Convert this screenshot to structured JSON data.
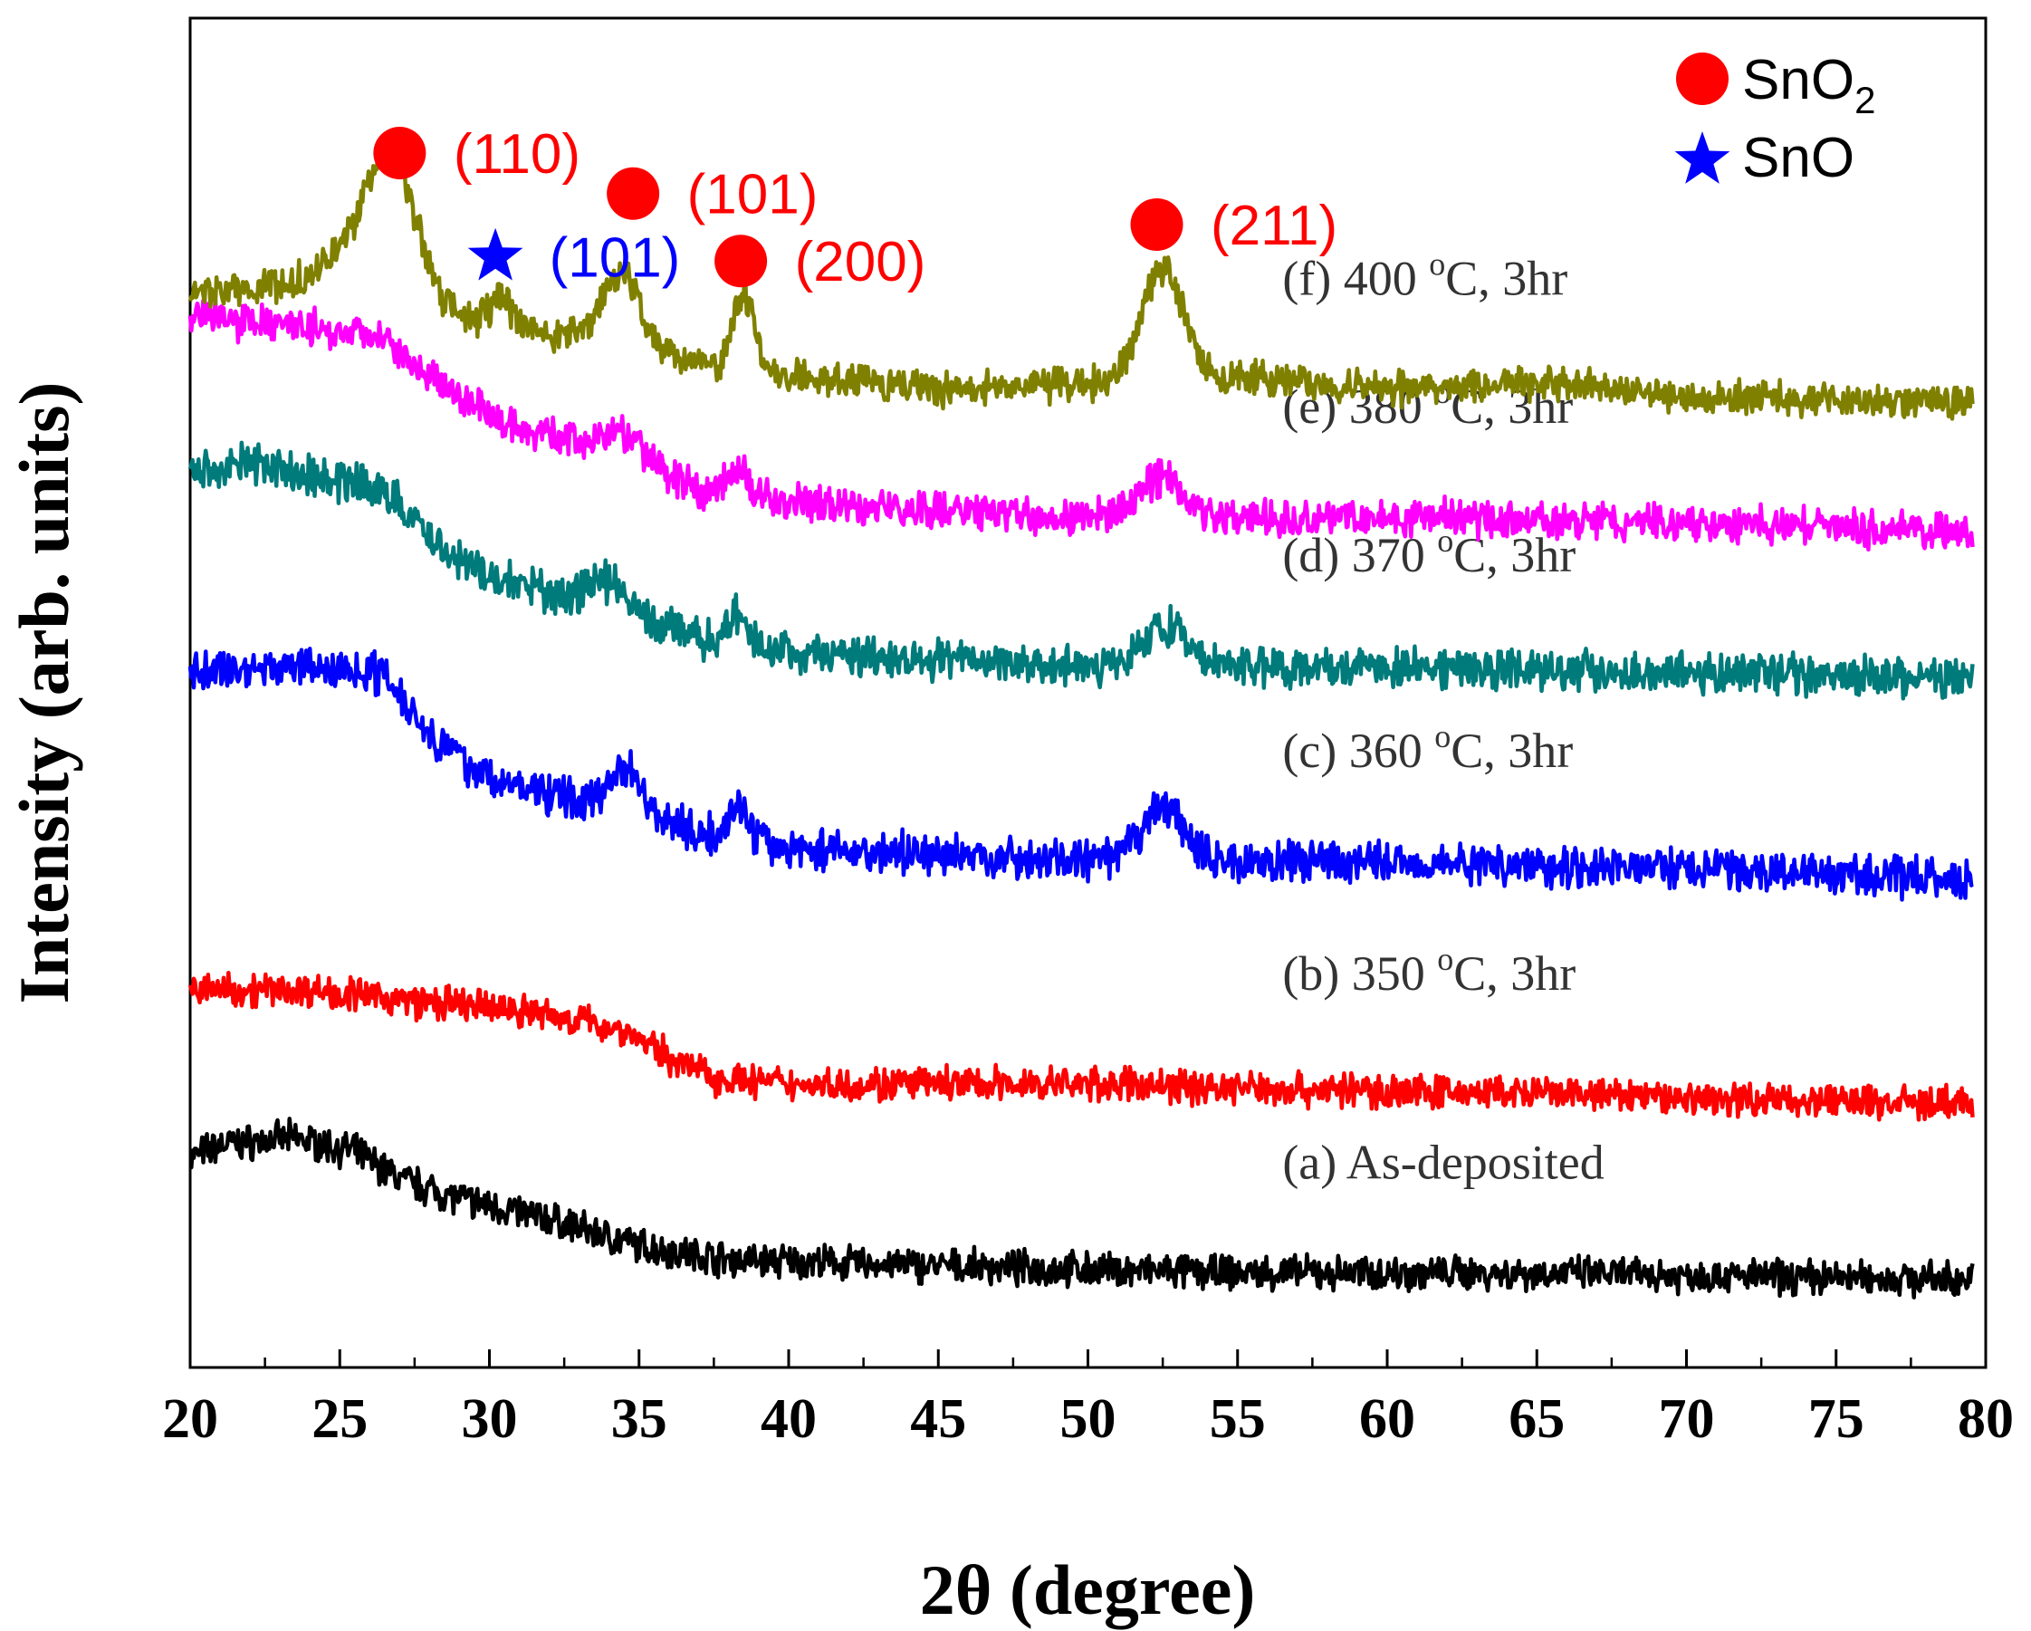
{
  "chart_data": {
    "type": "line",
    "title": "",
    "xlabel": "2θ (degree)",
    "ylabel": "Intensity (arb. units)",
    "xlim": [
      20,
      80
    ],
    "ylim": [
      0,
      1
    ],
    "x_ticks": [
      "20",
      "25",
      "30",
      "35",
      "40",
      "45",
      "50",
      "55",
      "60",
      "65",
      "70",
      "75",
      "80"
    ],
    "grid": false,
    "legend": {
      "position": "top-right",
      "entries": [
        {
          "marker": "circle",
          "color": "#ff0000",
          "base": "SnO",
          "sub": "2"
        },
        {
          "marker": "star",
          "color": "#0000ff",
          "label": "SnO"
        }
      ]
    },
    "series": [
      {
        "name": "(a) As-deposited",
        "label": "(a) As-deposited",
        "label_x": 56.5,
        "color": "#000000",
        "baseline": 0.055,
        "noise": 0.01,
        "shape": [
          [
            20,
            0.1
          ],
          [
            21,
            0.11
          ],
          [
            23.5,
            0.115
          ],
          [
            25.5,
            0.105
          ],
          [
            27,
            0.085
          ],
          [
            29,
            0.07
          ],
          [
            32,
            0.055
          ],
          [
            35,
            0.035
          ],
          [
            38,
            0.025
          ],
          [
            45,
            0.02
          ],
          [
            55,
            0.015
          ],
          [
            65,
            0.015
          ],
          [
            80,
            0.01
          ]
        ],
        "peaks": []
      },
      {
        "name": "(b) 350 °C, 3hr",
        "label_prefix": "(b) 350 ",
        "label_degree": "o",
        "label_suffix": "C, 3hr",
        "label_x": 56.5,
        "color": "#ff0000",
        "baseline": 0.195,
        "noise": 0.01,
        "shape": [
          [
            20,
            0.085
          ],
          [
            24,
            0.085
          ],
          [
            28,
            0.075
          ],
          [
            31,
            0.07
          ],
          [
            33,
            0.062
          ],
          [
            34.5,
            0.055
          ],
          [
            36,
            0.035
          ],
          [
            37.5,
            0.02
          ],
          [
            40,
            0.015
          ],
          [
            50,
            0.015
          ],
          [
            60,
            0.01
          ],
          [
            70,
            0.005
          ],
          [
            80,
            0.0
          ]
        ],
        "peaks": []
      },
      {
        "name": "(c) 360 °C, 3hr",
        "label_prefix": "(c) 360 ",
        "label_degree": "o",
        "label_suffix": "C, 3hr",
        "label_x": 56.5,
        "color": "#0000ff",
        "baseline": 0.36,
        "noise": 0.012,
        "shape": [
          [
            20,
            0.155
          ],
          [
            23,
            0.16
          ],
          [
            26.5,
            0.155
          ],
          [
            28,
            0.11
          ],
          [
            30,
            0.075
          ],
          [
            33,
            0.06
          ],
          [
            35,
            0.055
          ],
          [
            37,
            0.035
          ],
          [
            40,
            0.025
          ],
          [
            50,
            0.015
          ],
          [
            60,
            0.015
          ],
          [
            70,
            0.01
          ],
          [
            80,
            0.0
          ]
        ],
        "peaks": [
          [
            34.5,
            0.03,
            0.5
          ],
          [
            38.3,
            0.025,
            0.35
          ],
          [
            52.5,
            0.04,
            0.7
          ]
        ]
      },
      {
        "name": "(d) 370 °C, 3hr",
        "label_prefix": "(d) 370 ",
        "label_degree": "o",
        "label_suffix": "C, 3hr",
        "label_x": 56.5,
        "color": "#007b7b",
        "baseline": 0.505,
        "noise": 0.012,
        "shape": [
          [
            20,
            0.16
          ],
          [
            22,
            0.165
          ],
          [
            26.5,
            0.145
          ],
          [
            28,
            0.11
          ],
          [
            30,
            0.08
          ],
          [
            33,
            0.065
          ],
          [
            35,
            0.05
          ],
          [
            37,
            0.035
          ],
          [
            40,
            0.025
          ],
          [
            50,
            0.015
          ],
          [
            60,
            0.015
          ],
          [
            70,
            0.01
          ],
          [
            80,
            0.005
          ]
        ],
        "peaks": [
          [
            34,
            0.02,
            0.6
          ],
          [
            38.3,
            0.02,
            0.35
          ],
          [
            52.5,
            0.03,
            0.7
          ]
        ]
      },
      {
        "name": "(e) 380 °C, 3hr",
        "label_prefix": "(e) 380 ",
        "label_degree": "o",
        "label_suffix": "C, 3hr",
        "label_x": 56.5,
        "color": "#ff00ff",
        "baseline": 0.615,
        "noise": 0.011,
        "shape": [
          [
            20,
            0.165
          ],
          [
            22,
            0.16
          ],
          [
            26.5,
            0.15
          ],
          [
            28,
            0.12
          ],
          [
            30,
            0.09
          ],
          [
            33,
            0.07
          ],
          [
            35,
            0.055
          ],
          [
            37,
            0.035
          ],
          [
            40,
            0.025
          ],
          [
            50,
            0.015
          ],
          [
            60,
            0.015
          ],
          [
            70,
            0.01
          ],
          [
            80,
            0.005
          ]
        ],
        "peaks": [
          [
            34.5,
            0.02,
            0.6
          ],
          [
            38.3,
            0.02,
            0.35
          ],
          [
            52.5,
            0.03,
            0.7
          ]
        ]
      },
      {
        "name": "(f) 400 °C, 3hr",
        "label_prefix": "(f) 400 ",
        "label_degree": "o",
        "label_suffix": "C, 3hr",
        "label_x": 56.5,
        "color": "#808000",
        "baseline": 0.71,
        "noise": 0.01,
        "shape": [
          [
            20,
            0.085
          ],
          [
            23,
            0.09
          ],
          [
            25,
            0.11
          ],
          [
            28.5,
            0.07
          ],
          [
            32,
            0.055
          ],
          [
            36,
            0.04
          ],
          [
            38,
            0.03
          ],
          [
            40,
            0.025
          ],
          [
            45,
            0.015
          ],
          [
            52,
            0.02
          ],
          [
            55,
            0.025
          ],
          [
            60,
            0.015
          ],
          [
            65,
            0.02
          ],
          [
            70,
            0.01
          ],
          [
            80,
            0.005
          ]
        ],
        "peaks": [
          [
            26.7,
            0.1,
            0.85
          ],
          [
            30.4,
            0.022,
            0.35
          ],
          [
            34.4,
            0.055,
            0.65
          ],
          [
            38.5,
            0.055,
            0.35
          ],
          [
            52.5,
            0.085,
            0.7
          ]
        ]
      }
    ],
    "annotations": [
      {
        "text": "(110)",
        "color": "#ff0000",
        "marker": "circle",
        "x": 27.0,
        "y": 0.9,
        "text_x": 28.8
      },
      {
        "text": "(101)",
        "color": "#ff0000",
        "marker": "circle",
        "x": 34.8,
        "y": 0.87,
        "text_x": 36.6
      },
      {
        "text": "(101)",
        "color": "#0000ff",
        "marker": "star",
        "x": 30.2,
        "y": 0.823,
        "text_x": 32.0
      },
      {
        "text": "(200)",
        "color": "#ff0000",
        "marker": "circle",
        "x": 38.4,
        "y": 0.82,
        "text_x": 40.2
      },
      {
        "text": "(211)",
        "color": "#ff0000",
        "marker": "circle",
        "x": 52.3,
        "y": 0.847,
        "text_x": 54.1
      }
    ]
  }
}
